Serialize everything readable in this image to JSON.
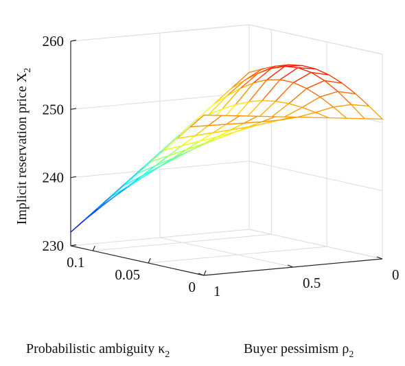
{
  "chart_data": {
    "type": "surface",
    "zlabel": "Implicit reservation price X",
    "zlabel_sub": "2",
    "xlabel": "Probabilistic ambiguity κ",
    "xlabel_sub": "2",
    "ylabel": "Buyer pessimism ρ",
    "ylabel_sub": "2",
    "zticks": [
      230,
      240,
      250,
      260
    ],
    "zlim": [
      230,
      260
    ],
    "kappa_ticks": [
      0,
      0.05,
      0.1
    ],
    "kappa_tick_labels": [
      "0",
      "0.05",
      "0.1"
    ],
    "kappa_range": [
      0,
      0.12
    ],
    "rho_ticks": [
      0,
      0.5,
      1
    ],
    "rho_tick_labels": [
      "0",
      "0.5",
      "1"
    ],
    "rho_range": [
      0,
      1
    ],
    "grid": true,
    "colormap": "jet",
    "mesh": {
      "kappa_steps": 10,
      "rho_steps": 10
    },
    "corner_values": {
      "kappa0_rho0": 250.5,
      "kappa0_rho1": 253.5,
      "kappa_max_rho0": 253.0,
      "kappa_max_rho1": 232.0
    },
    "ridge_peak": {
      "kappa": 0.05,
      "rho": 0.12,
      "value": 256.0
    }
  }
}
